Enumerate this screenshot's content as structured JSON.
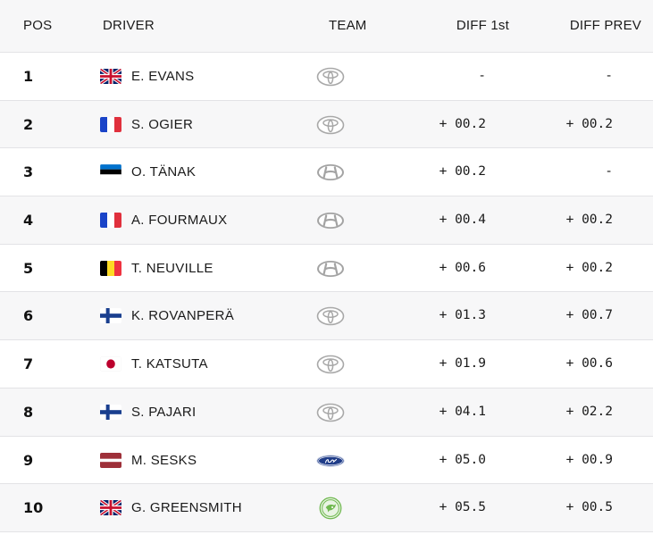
{
  "header": {
    "pos": "POS",
    "driver": "DRIVER",
    "team": "TEAM",
    "diff_first": "DIFF 1st",
    "diff_prev": "DIFF PREV"
  },
  "rows": [
    {
      "pos": "1",
      "flag": "gb",
      "name": "E. EVANS",
      "team": "toyota",
      "diff_first": "-",
      "diff_prev": "-"
    },
    {
      "pos": "2",
      "flag": "fr",
      "name": "S. OGIER",
      "team": "toyota",
      "diff_first": "+ 00.2",
      "diff_prev": "+ 00.2"
    },
    {
      "pos": "3",
      "flag": "ee",
      "name": "O. TÄNAK",
      "team": "hyundai",
      "diff_first": "+ 00.2",
      "diff_prev": "-"
    },
    {
      "pos": "4",
      "flag": "fr",
      "name": "A. FOURMAUX",
      "team": "hyundai",
      "diff_first": "+ 00.4",
      "diff_prev": "+ 00.2"
    },
    {
      "pos": "5",
      "flag": "be",
      "name": "T. NEUVILLE",
      "team": "hyundai",
      "diff_first": "+ 00.6",
      "diff_prev": "+ 00.2"
    },
    {
      "pos": "6",
      "flag": "fi",
      "name": "K. ROVANPERÄ",
      "team": "toyota",
      "diff_first": "+ 01.3",
      "diff_prev": "+ 00.7"
    },
    {
      "pos": "7",
      "flag": "jp",
      "name": "T. KATSUTA",
      "team": "toyota",
      "diff_first": "+ 01.9",
      "diff_prev": "+ 00.6"
    },
    {
      "pos": "8",
      "flag": "fi",
      "name": "S. PAJARI",
      "team": "toyota",
      "diff_first": "+ 04.1",
      "diff_prev": "+ 02.2"
    },
    {
      "pos": "9",
      "flag": "lv",
      "name": "M. SESKS",
      "team": "ford",
      "diff_first": "+ 05.0",
      "diff_prev": "+ 00.9"
    },
    {
      "pos": "10",
      "flag": "gb",
      "name": "G. GREENSMITH",
      "team": "skoda",
      "diff_first": "+ 05.5",
      "diff_prev": "+ 00.5"
    }
  ],
  "colors": {
    "header_bg": "#f7f7f8",
    "alt_row_bg": "#f7f7f8",
    "divider": "#e3e3e6",
    "logo_grey": "#9a9a9a",
    "ford_blue": "#1f3c88",
    "skoda_green": "#4ba82e"
  }
}
